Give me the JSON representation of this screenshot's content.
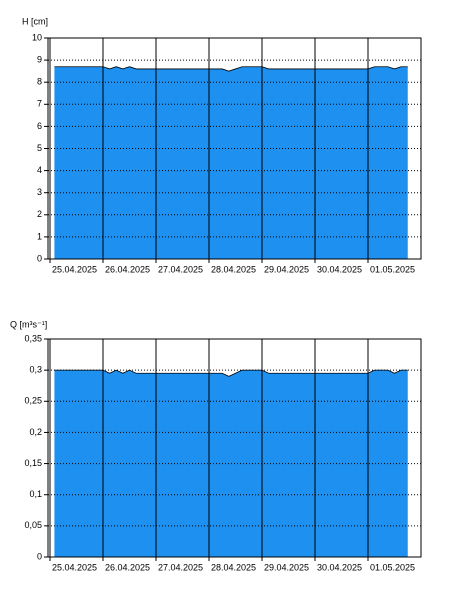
{
  "chart_data": [
    {
      "type": "area",
      "y_label": "H [cm]",
      "x": [
        "2025-04-25T02:00",
        "2025-04-26T00:00",
        "2025-04-26T03:00",
        "2025-04-26T06:00",
        "2025-04-26T09:00",
        "2025-04-26T12:00",
        "2025-04-26T15:00",
        "2025-04-27T00:00",
        "2025-04-28T00:00",
        "2025-04-28T06:00",
        "2025-04-28T09:00",
        "2025-04-28T12:00",
        "2025-04-28T15:00",
        "2025-04-29T00:00",
        "2025-04-29T03:00",
        "2025-04-30T00:00",
        "2025-05-01T00:00",
        "2025-05-01T03:00",
        "2025-05-01T09:00",
        "2025-05-01T12:00",
        "2025-05-01T15:00",
        "2025-05-01T18:00"
      ],
      "values": [
        8.7,
        8.7,
        8.6,
        8.7,
        8.6,
        8.7,
        8.6,
        8.6,
        8.6,
        8.6,
        8.5,
        8.6,
        8.7,
        8.7,
        8.6,
        8.6,
        8.6,
        8.7,
        8.7,
        8.6,
        8.7,
        8.7
      ],
      "color": "#1e90ef",
      "xlim": [
        "2025-04-25T00:00",
        "2025-05-02T00:00"
      ],
      "xticks": [
        {
          "value": "2025-04-25",
          "label": "25.04.2025"
        },
        {
          "value": "2025-04-26",
          "label": "26.04.2025"
        },
        {
          "value": "2025-04-27",
          "label": "27.04.2025"
        },
        {
          "value": "2025-04-28",
          "label": "28.04.2025"
        },
        {
          "value": "2025-04-29",
          "label": "29.04.2025"
        },
        {
          "value": "2025-04-30",
          "label": "30.04.2025"
        },
        {
          "value": "2025-05-01",
          "label": "01.05.2025"
        }
      ],
      "ylim": [
        0,
        10
      ],
      "yticks": [
        0,
        1,
        2,
        3,
        4,
        5,
        6,
        7,
        8,
        9,
        10
      ],
      "grid": true
    },
    {
      "type": "area",
      "y_label": "Q [m³s⁻¹]",
      "x": [
        "2025-04-25T02:00",
        "2025-04-26T00:00",
        "2025-04-26T03:00",
        "2025-04-26T06:00",
        "2025-04-26T09:00",
        "2025-04-26T12:00",
        "2025-04-26T15:00",
        "2025-04-27T00:00",
        "2025-04-28T00:00",
        "2025-04-28T06:00",
        "2025-04-28T09:00",
        "2025-04-28T12:00",
        "2025-04-28T15:00",
        "2025-04-29T00:00",
        "2025-04-29T03:00",
        "2025-04-30T00:00",
        "2025-05-01T00:00",
        "2025-05-01T03:00",
        "2025-05-01T09:00",
        "2025-05-01T12:00",
        "2025-05-01T15:00",
        "2025-05-01T18:00"
      ],
      "values": [
        0.3,
        0.3,
        0.295,
        0.3,
        0.295,
        0.3,
        0.295,
        0.295,
        0.295,
        0.295,
        0.29,
        0.295,
        0.3,
        0.3,
        0.295,
        0.295,
        0.295,
        0.3,
        0.3,
        0.295,
        0.3,
        0.3
      ],
      "color": "#1e90ef",
      "xlim": [
        "2025-04-25T00:00",
        "2025-05-02T00:00"
      ],
      "xticks": [
        {
          "value": "2025-04-25",
          "label": "25.04.2025"
        },
        {
          "value": "2025-04-26",
          "label": "26.04.2025"
        },
        {
          "value": "2025-04-27",
          "label": "27.04.2025"
        },
        {
          "value": "2025-04-28",
          "label": "28.04.2025"
        },
        {
          "value": "2025-04-29",
          "label": "29.04.2025"
        },
        {
          "value": "2025-04-30",
          "label": "30.04.2025"
        },
        {
          "value": "2025-05-01",
          "label": "01.05.2025"
        }
      ],
      "ylim": [
        0,
        0.35
      ],
      "yticks": [
        0,
        {
          "value": 0.05,
          "label": "0,05"
        },
        {
          "value": 0.1,
          "label": "0,1"
        },
        {
          "value": 0.15,
          "label": "0,15"
        },
        {
          "value": 0.2,
          "label": "0,2"
        },
        {
          "value": 0.25,
          "label": "0,25"
        },
        {
          "value": 0.3,
          "label": "0,3"
        },
        {
          "value": 0.35,
          "label": "0,35"
        }
      ],
      "grid": true
    }
  ]
}
